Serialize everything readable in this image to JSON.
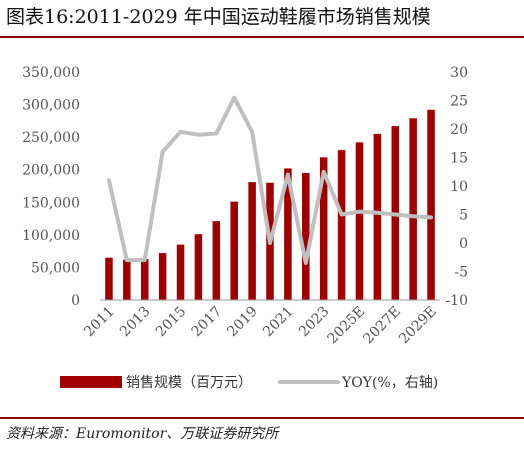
{
  "title": "图表16:2011-2029 年中国运动鞋履市场销售规模",
  "source": "资料来源：Euromonitor、万联证券研究所",
  "colors": {
    "bar": "#a00000",
    "line": "#bfbfbf",
    "rule": "#8b0000"
  },
  "chart_data": {
    "type": "bar",
    "categories": [
      "2011",
      "2012",
      "2013",
      "2014",
      "2015",
      "2016",
      "2017",
      "2018",
      "2019",
      "2020",
      "2021",
      "2022",
      "2023",
      "2024",
      "2025E",
      "2026E",
      "2027E",
      "2028E",
      "2029E"
    ],
    "x_tick_labels": [
      "2011",
      "",
      "2013",
      "",
      "2015",
      "",
      "2017",
      "",
      "2019",
      "",
      "2021",
      "",
      "2023",
      "",
      "2025E",
      "",
      "2027E",
      "",
      "2029E"
    ],
    "series": [
      {
        "name": "销售规模（百万元）",
        "type": "bar",
        "axis": "left",
        "values": [
          65000,
          62000,
          63000,
          72000,
          85000,
          101000,
          121000,
          151000,
          181000,
          180000,
          202000,
          195000,
          219000,
          230000,
          242000,
          255000,
          267000,
          279000,
          292000
        ]
      },
      {
        "name": "YOY(%，右轴)",
        "type": "line",
        "axis": "right",
        "values": [
          11,
          -3,
          -3,
          16,
          19.5,
          19,
          19.2,
          25.5,
          19.5,
          0,
          12,
          -3.5,
          12.5,
          5,
          5.5,
          5.3,
          5,
          4.7,
          4.5
        ]
      }
    ],
    "y_left": {
      "lim": [
        0,
        350000
      ],
      "ticks": [
        0,
        50000,
        100000,
        150000,
        200000,
        250000,
        300000,
        350000
      ],
      "tick_labels": [
        "0",
        "50,000",
        "100,000",
        "150,000",
        "200,000",
        "250,000",
        "300,000",
        "350,000"
      ]
    },
    "y_right": {
      "lim": [
        -10,
        30
      ],
      "ticks": [
        -10,
        -5,
        0,
        5,
        10,
        15,
        20,
        25,
        30
      ],
      "tick_labels": [
        "-10",
        "-5",
        "0",
        "5",
        "10",
        "15",
        "20",
        "25",
        "30"
      ]
    },
    "legend": {
      "position": "bottom",
      "bar_label": "销售规模（百万元）",
      "line_label": "YOY(%，右轴)"
    },
    "grid": false
  }
}
